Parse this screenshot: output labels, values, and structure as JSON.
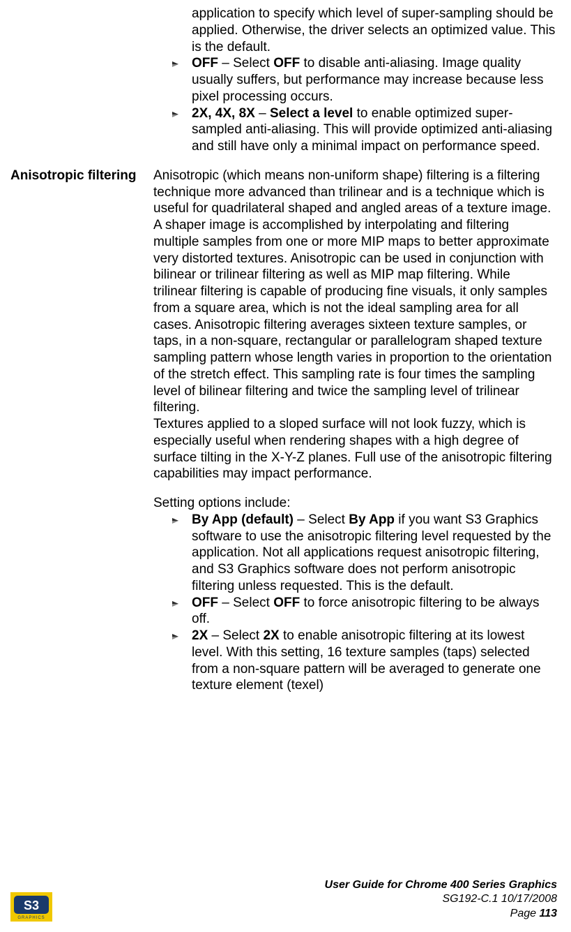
{
  "section1": {
    "intro_continuation": "application to specify which level of super-sampling should be applied. Otherwise, the driver selects an optimized value. This is the default.",
    "bullets": [
      {
        "label_bold": "OFF",
        "label_sep": " – Select ",
        "label_bold2": "OFF",
        "text": " to disable anti-aliasing. Image quality usually suffers, but performance may increase because less pixel processing occurs."
      },
      {
        "label_bold": "2X, 4X, 8X",
        "label_sep": " – ",
        "label_bold2": "Select a level",
        "text": " to enable optimized super-sampled anti-aliasing. This will provide optimized anti-aliasing and still have only a minimal impact on performance speed."
      }
    ]
  },
  "section2": {
    "label": "Anisotropic filtering",
    "para1": "Anisotropic (which means non-uniform shape) filtering is a filtering technique more advanced than trilinear and is a technique which is useful for quadrilateral shaped and angled areas of a texture image. A shaper image is accomplished by interpolating and filtering multiple samples from one or more MIP maps to better approximate very distorted textures. Anisotropic can be used in conjunction with bilinear or trilinear filtering as well as MIP map filtering. While trilinear filtering is capable of producing fine visuals, it only samples from a square area, which is not the ideal sampling area for all cases. Anisotropic filtering averages sixteen texture samples, or taps, in a non-square, rectangular or parallelogram shaped texture sampling pattern whose length varies in proportion to the orientation of the stretch effect. This sampling rate is four times the sampling level of bilinear filtering and twice the sampling level of trilinear filtering.",
    "para2": "Textures applied to a sloped surface will not look fuzzy, which is especially useful when rendering shapes with a high degree of surface tilting in the X-Y-Z planes. Full use of the anisotropic filtering capabilities may impact performance.",
    "options_intro": "Setting options include:",
    "bullets": [
      {
        "label_bold": "By App (default)",
        "label_sep": " – Select ",
        "label_bold2": "By App",
        "text": " if you want S3 Graphics software to use the anisotropic filtering level requested by the application. Not all applications request anisotropic filtering, and S3 Graphics software does not perform anisotropic filtering unless requested. This is the default."
      },
      {
        "label_bold": "OFF",
        "label_sep": " – Select ",
        "label_bold2": "OFF",
        "text": " to force anisotropic filtering to be always off."
      },
      {
        "label_bold": "2X",
        "label_sep": " – Select ",
        "label_bold2": "2X",
        "text": " to enable anisotropic filtering at its lowest level. With this setting, 16 texture samples (taps) selected from a non-square pattern will be averaged to generate one texture element (texel)"
      }
    ]
  },
  "footer": {
    "title": "User Guide for Chrome 400 Series Graphics",
    "doc_id": "SG192-C.1   10/17/2008",
    "page_label": "Page ",
    "page_num": "113"
  },
  "colors": {
    "logo_yellow": "#f0c800",
    "logo_blue": "#1a3a6b",
    "arrow_dark": "#2a2a2a",
    "arrow_light": "#888888"
  }
}
